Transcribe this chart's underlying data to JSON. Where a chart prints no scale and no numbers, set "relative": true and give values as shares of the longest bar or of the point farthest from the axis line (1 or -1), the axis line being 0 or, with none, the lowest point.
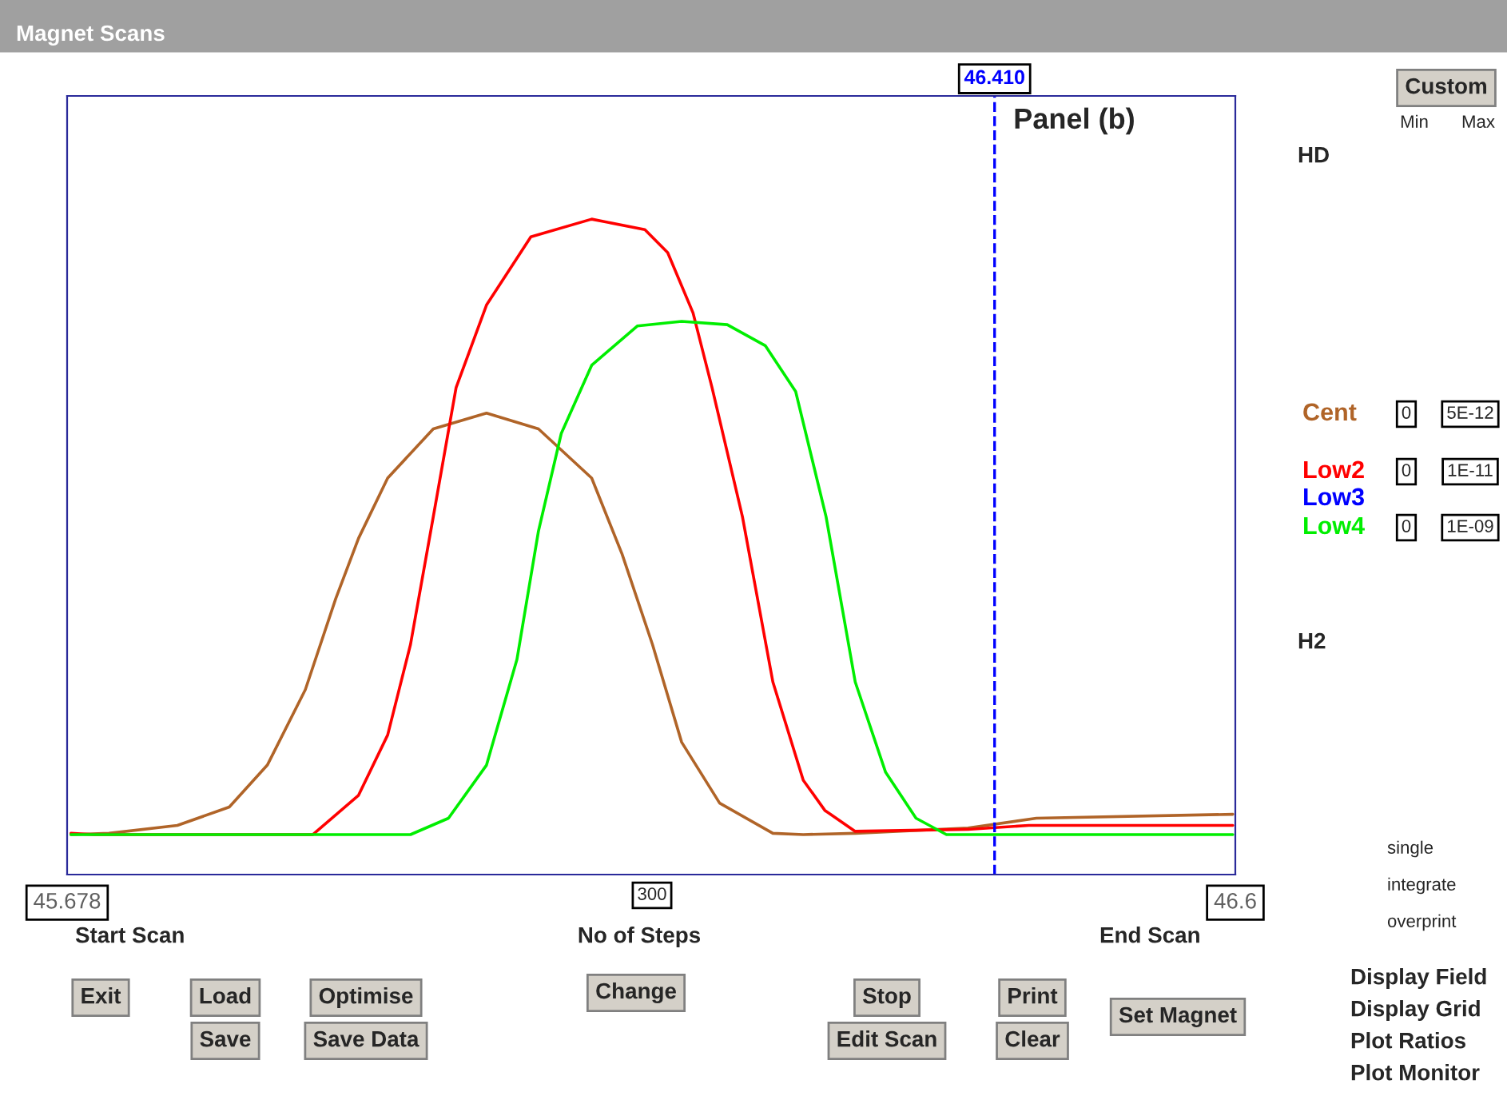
{
  "chart_data": {
    "type": "line",
    "title": "Magnet Scans",
    "subtitle": "Panel (b)",
    "relative": true,
    "tick_labels": "x",
    "grid": false,
    "legend": "right",
    "xlim": [
      45.678,
      46.6
    ],
    "xticks": [
      45.678,
      46.6
    ],
    "ref_lines": [
      {
        "axis": "x",
        "value": 46.41,
        "label": "46.410",
        "color": "#0000ff",
        "line_style": "dashed"
      }
    ],
    "series": [
      {
        "name": "Cent",
        "color": "#b06428",
        "x": [
          45.681,
          45.711,
          45.765,
          45.806,
          45.836,
          45.866,
          45.89,
          45.908,
          45.931,
          45.967,
          46.009,
          46.05,
          46.092,
          46.116,
          46.14,
          46.163,
          46.193,
          46.235,
          46.259,
          46.3,
          46.389,
          46.443,
          46.598
        ],
        "values": [
          0.061,
          0.063,
          0.075,
          0.103,
          0.167,
          0.282,
          0.421,
          0.513,
          0.605,
          0.68,
          0.704,
          0.68,
          0.605,
          0.489,
          0.351,
          0.202,
          0.109,
          0.063,
          0.061,
          0.063,
          0.071,
          0.086,
          0.092
        ]
      },
      {
        "name": "Low2",
        "color": "#ff0000",
        "x": [
          45.681,
          45.699,
          45.872,
          45.908,
          45.931,
          45.949,
          45.967,
          45.985,
          46.009,
          46.044,
          46.092,
          46.134,
          46.152,
          46.172,
          46.187,
          46.211,
          46.235,
          46.259,
          46.276,
          46.3,
          46.389,
          46.437,
          46.598
        ],
        "values": [
          0.063,
          0.061,
          0.061,
          0.121,
          0.213,
          0.351,
          0.546,
          0.743,
          0.869,
          0.973,
          1.0,
          0.984,
          0.949,
          0.857,
          0.743,
          0.546,
          0.294,
          0.144,
          0.098,
          0.066,
          0.069,
          0.075,
          0.075
        ]
      },
      {
        "name": "Low3",
        "color": "#0000ff"
      },
      {
        "name": "Low4",
        "color": "#00ee00",
        "x": [
          45.681,
          45.949,
          45.979,
          46.009,
          46.033,
          46.05,
          46.068,
          46.092,
          46.128,
          46.163,
          46.199,
          46.229,
          46.253,
          46.277,
          46.3,
          46.324,
          46.348,
          46.372,
          46.598
        ],
        "values": [
          0.061,
          0.061,
          0.086,
          0.167,
          0.328,
          0.524,
          0.673,
          0.777,
          0.837,
          0.844,
          0.839,
          0.807,
          0.737,
          0.546,
          0.294,
          0.156,
          0.086,
          0.061,
          0.061
        ]
      }
    ],
    "annotations": [
      "Start Scan",
      "300",
      "No of Steps",
      "End Scan",
      "Custom",
      "Min",
      "Max",
      "HD",
      "0",
      "5E-12",
      "0",
      "1E-11",
      "0",
      "1E-09",
      "H2",
      "single",
      "integrate",
      "overprint",
      "Display Field",
      "Display Grid",
      "Plot Ratios",
      "Plot Monitor",
      "Exit",
      "Load",
      "Save",
      "Optimise",
      "Save Data",
      "Change",
      "Stop",
      "Edit Scan",
      "Print",
      "Clear",
      "Set Magnet"
    ]
  }
}
